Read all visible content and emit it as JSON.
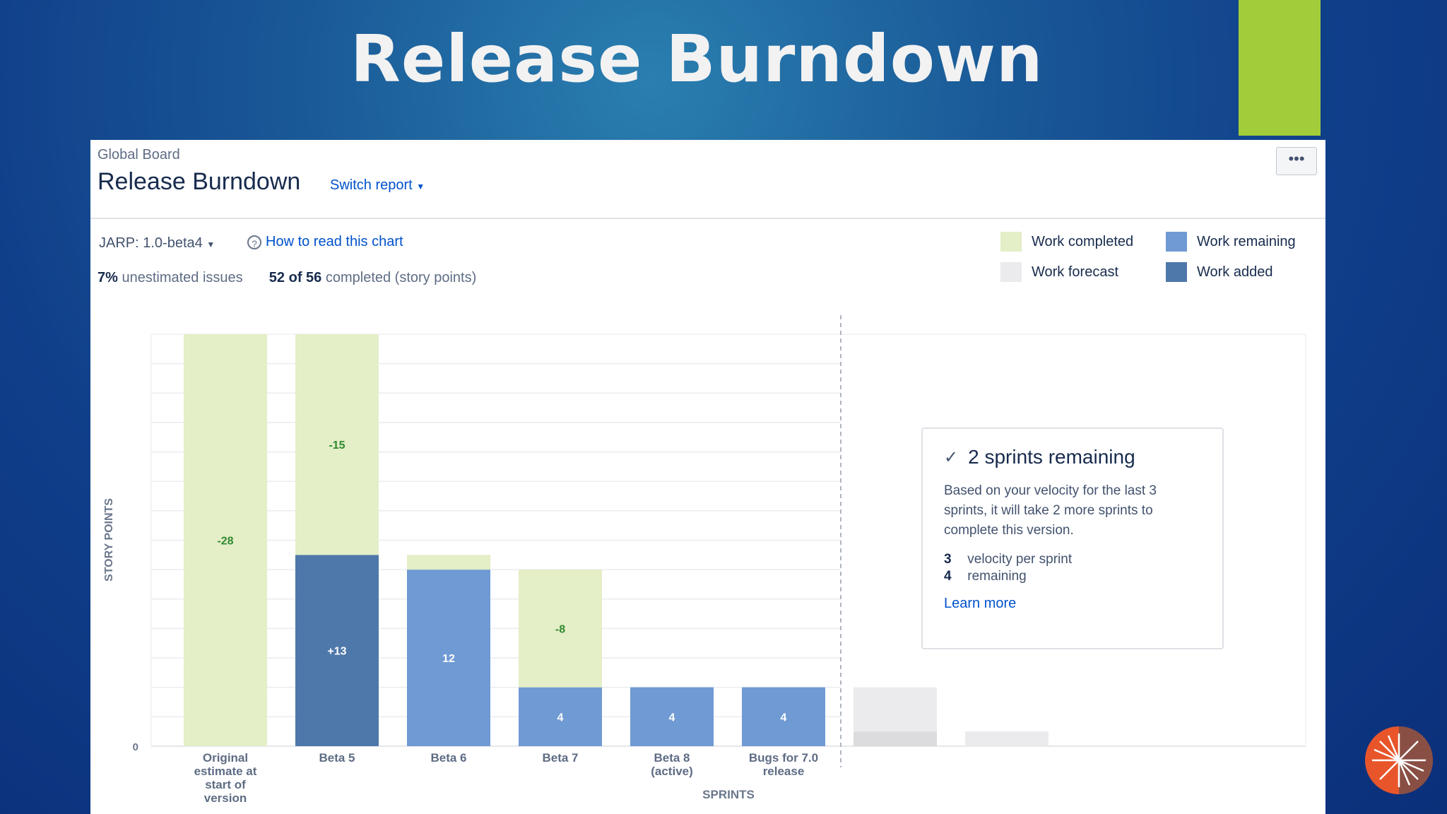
{
  "slide": {
    "title": "Release Burndown"
  },
  "report": {
    "board": "Global Board",
    "title": "Release Burndown",
    "switch_report": "Switch report",
    "more": "•••",
    "version": "JARP: 1.0-beta4",
    "how_to": "How to read this chart",
    "help_glyph": "?",
    "unestimated_pct": "7%",
    "unestimated_label": "unestimated issues",
    "completed_count": "52 of 56",
    "completed_label": "completed (story points)"
  },
  "legend": [
    {
      "label": "Work completed",
      "color": "#e4eec7"
    },
    {
      "label": "Work remaining",
      "color": "#6f9ad3"
    },
    {
      "label": "Work forecast",
      "color": "#ebebed"
    },
    {
      "label": "Work added",
      "color": "#4f78aa"
    }
  ],
  "info_box": {
    "check": "✓",
    "title": "2 sprints remaining",
    "body": "Based on your velocity for the last 3 sprints, it will take 2 more sprints to complete this version.",
    "velocity_value": "3",
    "velocity_label": "velocity per sprint",
    "remaining_value": "4",
    "remaining_label": "remaining",
    "learn_more": "Learn more"
  },
  "chart_data": {
    "type": "bar",
    "stacked": true,
    "ylabel": "STORY POINTS",
    "xlabel": "SPRINTS",
    "y_tick_zero": "0",
    "categories": [
      [
        "Original",
        "estimate at",
        "start of",
        "version"
      ],
      [
        "Beta 5"
      ],
      [
        "Beta 6"
      ],
      [
        "Beta 7"
      ],
      [
        "Beta 8",
        "(active)"
      ],
      [
        "Bugs for 7.0",
        "release"
      ]
    ],
    "bars": [
      {
        "remaining": 0,
        "added": 0,
        "completed": 28,
        "completed_label": "-28"
      },
      {
        "remaining": 0,
        "added": 13,
        "completed": 15,
        "completed_label": "-15",
        "added_label": "+13"
      },
      {
        "remaining": 12,
        "added": 0,
        "completed": 1,
        "remaining_label": "12"
      },
      {
        "remaining": 4,
        "added": 0,
        "completed": 8,
        "completed_label": "-8",
        "remaining_label": "4"
      },
      {
        "remaining": 4,
        "added": 0,
        "completed": 0,
        "remaining_label": "4"
      },
      {
        "remaining": 4,
        "added": 0,
        "completed": 0,
        "remaining_label": "4"
      }
    ],
    "forecast": [
      {
        "light": 3,
        "dark": 1
      },
      {
        "light": 1,
        "dark": 0
      }
    ],
    "ymax": 28,
    "grid": true,
    "colors": {
      "completed": "#e4eec7",
      "remaining": "#6f9ad3",
      "added": "#4f78aa",
      "forecast_light": "#ebebed",
      "forecast_dark": "#dcdcde",
      "completed_text": "#2f8a2f",
      "bar_text": "#ffffff"
    }
  }
}
